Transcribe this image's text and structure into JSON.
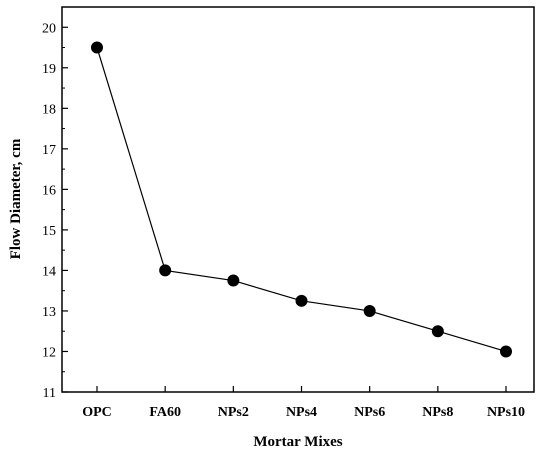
{
  "chart_data": {
    "type": "line",
    "categories": [
      "OPC",
      "FA60",
      "NPs2",
      "NPs4",
      "NPs6",
      "NPs8",
      "NPs10"
    ],
    "values": [
      19.5,
      14.0,
      13.75,
      13.25,
      13.0,
      12.5,
      12.0
    ],
    "xlabel": "Mortar Mixes",
    "ylabel": "Flow Diameter, cm",
    "ylim": [
      11,
      20.5
    ],
    "yticks": [
      11,
      12,
      13,
      14,
      15,
      16,
      17,
      18,
      19,
      20
    ],
    "grid": false,
    "marker": "filled-circle",
    "colors": {
      "line": "#000000",
      "marker": "#000000",
      "axis": "#000000"
    }
  }
}
